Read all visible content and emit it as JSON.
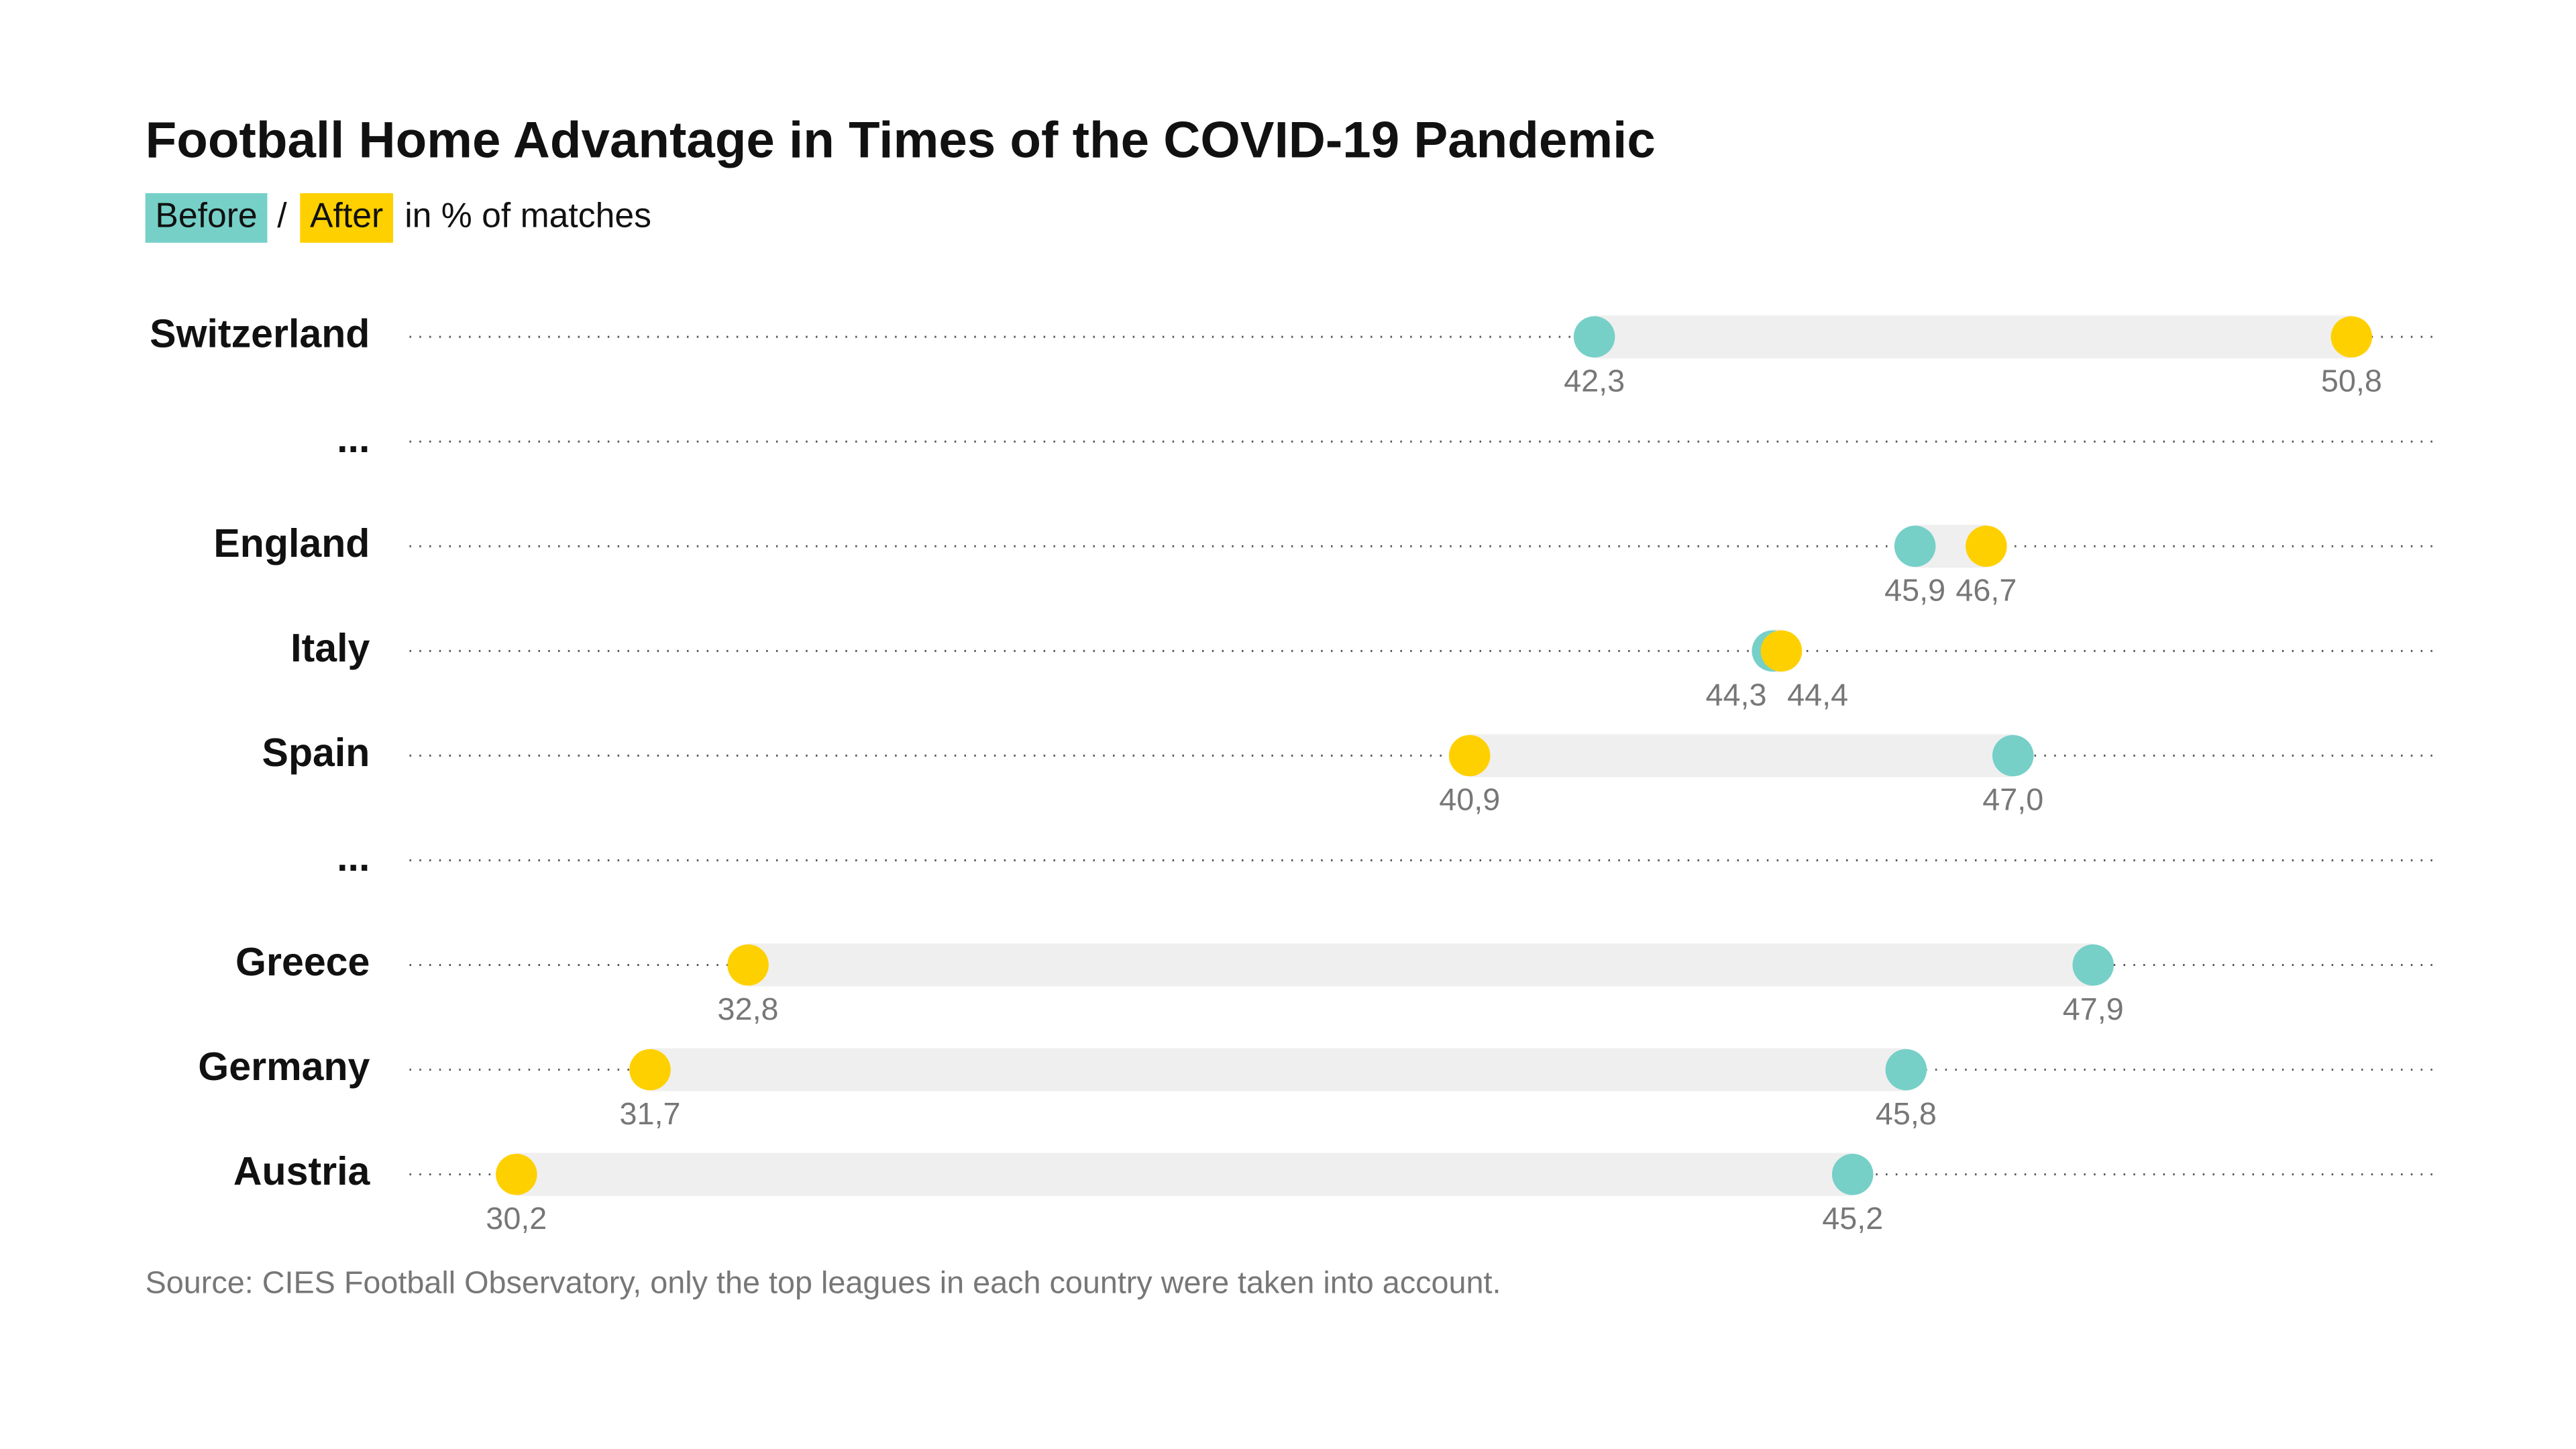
{
  "chart_data": {
    "type": "dumbbell",
    "title": "Football Home Advantage in Times of the COVID-19 Pandemic",
    "legend_separator": "/",
    "subtitle": "in % of matches",
    "categories": [
      "Switzerland",
      "...",
      "England",
      "Italy",
      "Spain",
      "...",
      "Greece",
      "Germany",
      "Austria"
    ],
    "series": [
      {
        "name": "Before",
        "color": "#76d0c8",
        "values": [
          42.3,
          null,
          45.9,
          44.3,
          47.0,
          null,
          47.9,
          45.8,
          45.2
        ],
        "value_labels": [
          "42,3",
          null,
          "45,9",
          "44,3",
          "47,0",
          null,
          "47,9",
          "45,8",
          "45,2"
        ]
      },
      {
        "name": "After",
        "color": "#ffd000",
        "values": [
          50.8,
          null,
          46.7,
          44.4,
          40.9,
          null,
          32.8,
          31.7,
          30.2
        ],
        "value_labels": [
          "50,8",
          null,
          "46,7",
          "44,4",
          "40,9",
          null,
          "32,8",
          "31,7",
          "30,2"
        ]
      }
    ],
    "xlim": [
      29.0,
      51.8
    ],
    "range_color": "#efefef",
    "source": "Source: CIES Football Observatory, only the top leagues in each country were taken into account."
  }
}
